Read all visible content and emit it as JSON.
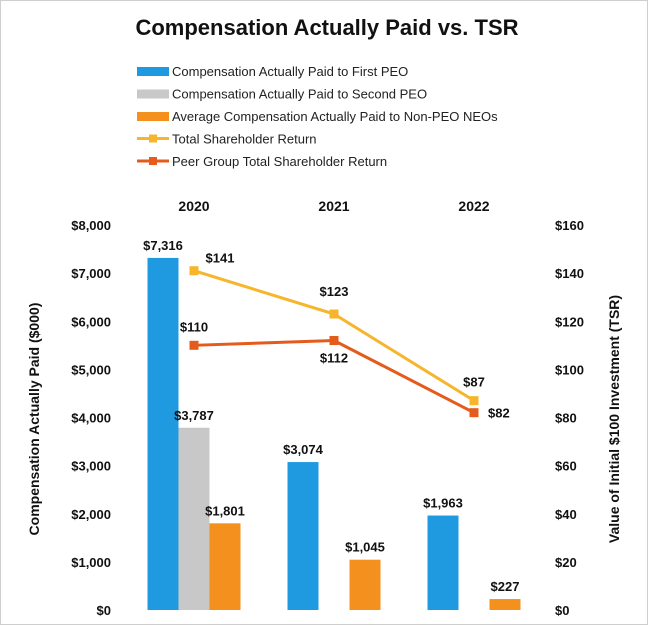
{
  "chart_data": {
    "type": "bar+line",
    "title": "Compensation Actually Paid vs. TSR",
    "categories": [
      "2020",
      "2021",
      "2022"
    ],
    "ylabel": "Compensation Actually Paid ($000)",
    "y2label": "Value of Initial $100 Investment (TSR)",
    "ylim": [
      0,
      8000
    ],
    "y2lim": [
      0,
      160
    ],
    "yticks": [
      "$0",
      "$1,000",
      "$2,000",
      "$3,000",
      "$4,000",
      "$5,000",
      "$6,000",
      "$7,000",
      "$8,000"
    ],
    "y2ticks": [
      "$0",
      "$20",
      "$40",
      "$60",
      "$80",
      "$100",
      "$120",
      "$140",
      "$160"
    ],
    "grid": false,
    "legend_position": "top",
    "bar_series": [
      {
        "name": "Compensation Actually Paid to First PEO",
        "color": "#1f9ae0",
        "values": [
          7316,
          3074,
          1963
        ],
        "labels": [
          "$7,316",
          "$3,074",
          "$1,963"
        ]
      },
      {
        "name": "Compensation Actually Paid to Second PEO",
        "color": "#c8c8c8",
        "values": [
          3787,
          null,
          null
        ],
        "labels": [
          "$3,787",
          "",
          ""
        ]
      },
      {
        "name": "Average Compensation Actually Paid to Non-PEO NEOs",
        "color": "#f4901e",
        "values": [
          1801,
          1045,
          227
        ],
        "labels": [
          "$1,801",
          "$1,045",
          "$227"
        ]
      }
    ],
    "line_series": [
      {
        "name": "Total Shareholder Return",
        "color": "#f7b52c",
        "values": [
          141,
          123,
          87
        ],
        "labels": [
          "$141",
          "$123",
          "$87"
        ]
      },
      {
        "name": "Peer Group Total Shareholder Return",
        "color": "#e55b1c",
        "values": [
          110,
          112,
          82
        ],
        "labels": [
          "$110",
          "$112",
          "$82"
        ]
      }
    ]
  }
}
